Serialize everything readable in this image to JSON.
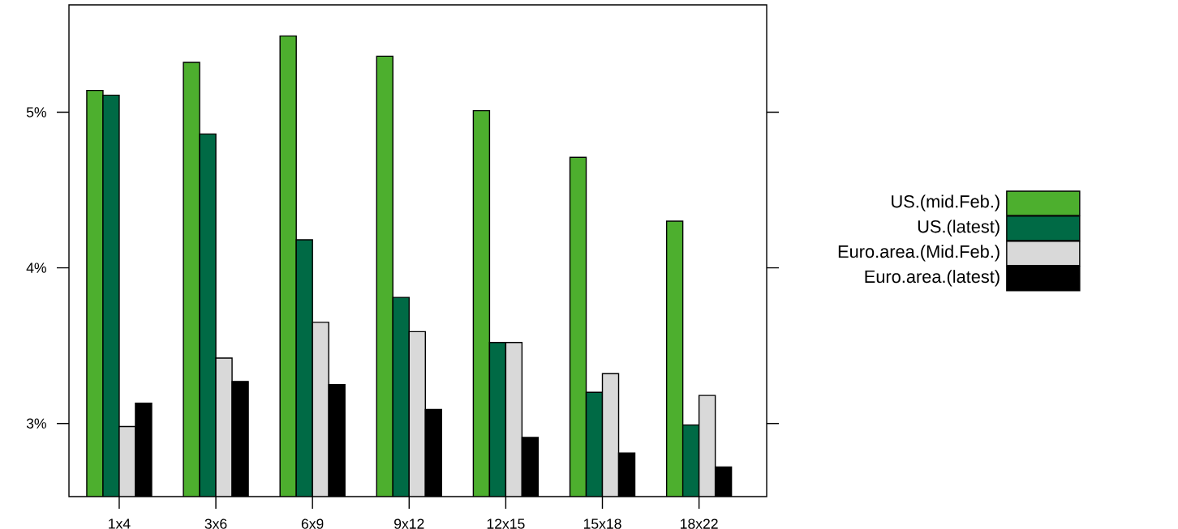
{
  "chart_data": {
    "type": "bar",
    "categories": [
      "1x4",
      "3x6",
      "6x9",
      "9x12",
      "12x15",
      "15x18",
      "18x22"
    ],
    "series": [
      {
        "name": "US.(mid.Feb.)",
        "color": "#4daf2e",
        "values": [
          5.14,
          5.32,
          5.49,
          5.36,
          5.01,
          4.71,
          4.3
        ]
      },
      {
        "name": "US.(latest)",
        "color": "#006a45",
        "values": [
          5.11,
          4.86,
          4.18,
          3.81,
          3.52,
          3.2,
          2.99
        ]
      },
      {
        "name": "Euro.area.(Mid.Feb.)",
        "color": "#d9d9d9",
        "values": [
          2.98,
          3.42,
          3.65,
          3.59,
          3.52,
          3.32,
          3.18
        ]
      },
      {
        "name": "Euro.area.(latest)",
        "color": "#000000",
        "values": [
          3.13,
          3.27,
          3.25,
          3.09,
          2.91,
          2.81,
          2.72
        ]
      }
    ],
    "ylim": [
      2.53,
      5.69
    ],
    "yticks": [
      {
        "value": 3,
        "label": "3%"
      },
      {
        "value": 4,
        "label": "4%"
      },
      {
        "value": 5,
        "label": "5%"
      }
    ],
    "legend": "right",
    "grid": false
  }
}
